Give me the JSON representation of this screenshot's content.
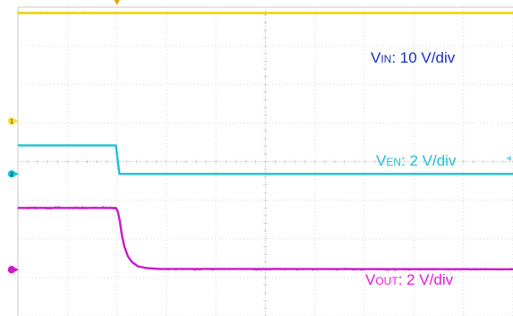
{
  "chart_data": {
    "type": "line",
    "xlim": [
      0,
      10
    ],
    "ylim": [
      0,
      8
    ],
    "grid": true,
    "grid_divisions": {
      "x": 10,
      "y": 8
    },
    "trigger_x": 2,
    "series": [
      {
        "name": "VIN",
        "color": "#e8d500",
        "marker_color": "#f0e040",
        "channel": "1",
        "ground_y": 5.05,
        "label_main": "V",
        "label_sub": "IN",
        "label_rest": ": 10 V/div",
        "points": [
          [
            0,
            7.85
          ],
          [
            10,
            7.85
          ]
        ],
        "noise_until": 2
      },
      {
        "name": "VEN",
        "color": "#1ec0d4",
        "marker_color": "#1ec0d4",
        "channel": "2",
        "ground_y": 3.68,
        "label_main": "V",
        "label_sub": "EN",
        "label_rest": ": 2 V/div",
        "points": [
          [
            0,
            4.42
          ],
          [
            1.98,
            4.42
          ],
          [
            2.0,
            4.2
          ],
          [
            2.05,
            3.68
          ],
          [
            10,
            3.68
          ]
        ],
        "noise_until": 0
      },
      {
        "name": "VOUT",
        "color": "#c81cc8",
        "marker_color": "#c81cc8",
        "channel": "",
        "ground_y": 1.2,
        "label_main": "V",
        "label_sub": "OUT",
        "label_rest": ": 2 V/div",
        "points": [
          [
            0,
            2.8
          ],
          [
            1.98,
            2.8
          ],
          [
            2.02,
            2.7
          ],
          [
            2.06,
            2.45
          ],
          [
            2.1,
            2.1
          ],
          [
            2.15,
            1.8
          ],
          [
            2.22,
            1.55
          ],
          [
            2.3,
            1.4
          ],
          [
            2.42,
            1.29
          ],
          [
            2.6,
            1.24
          ],
          [
            2.85,
            1.22
          ],
          [
            10,
            1.21
          ]
        ],
        "noise_until": 2
      }
    ]
  }
}
